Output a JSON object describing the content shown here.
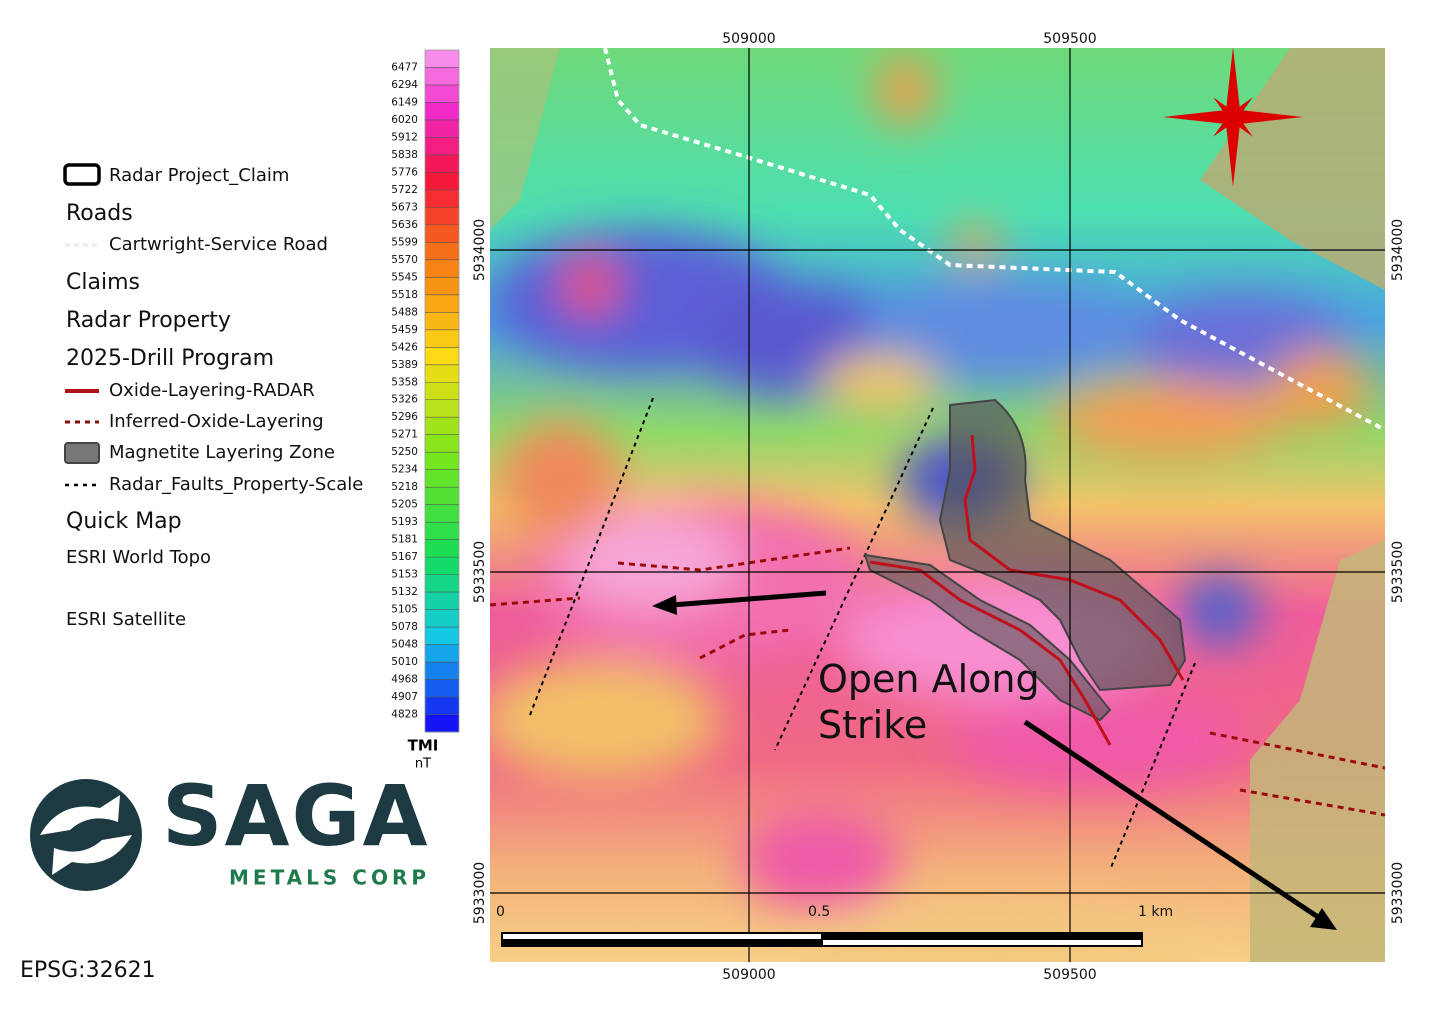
{
  "legend": {
    "items": [
      "Radar Project_Claim",
      "Roads",
      "Cartwright-Service Road",
      "Claims",
      "Radar Property",
      "2025-Drill Program",
      "Oxide-Layering-RADAR",
      "Inferred-Oxide-Layering",
      "Magnetite Layering Zone",
      "Radar_Faults_Property-Scale",
      "Quick Map",
      "ESRI World Topo",
      "ESRI Satellite"
    ]
  },
  "colorbar": {
    "title": "TMI",
    "unit": "nT",
    "labels": [
      "6477",
      "6294",
      "6149",
      "6020",
      "5912",
      "5838",
      "5776",
      "5722",
      "5673",
      "5636",
      "5599",
      "5570",
      "5545",
      "5518",
      "5488",
      "5459",
      "5426",
      "5389",
      "5358",
      "5326",
      "5296",
      "5271",
      "5250",
      "5234",
      "5218",
      "5205",
      "5193",
      "5181",
      "5167",
      "5153",
      "5132",
      "5105",
      "5078",
      "5048",
      "5010",
      "4968",
      "4907",
      "4828"
    ]
  },
  "grid": {
    "eastings": [
      "509000",
      "509500"
    ],
    "northings": [
      "5934000",
      "5933500",
      "5933000"
    ]
  },
  "scale_bar": {
    "labels": [
      "0",
      "0.5",
      "1 km"
    ]
  },
  "annotation": "Open Along Strike",
  "logo": {
    "name": "SAGA",
    "subtitle": "METALS CORP"
  },
  "crs": "EPSG:32621"
}
